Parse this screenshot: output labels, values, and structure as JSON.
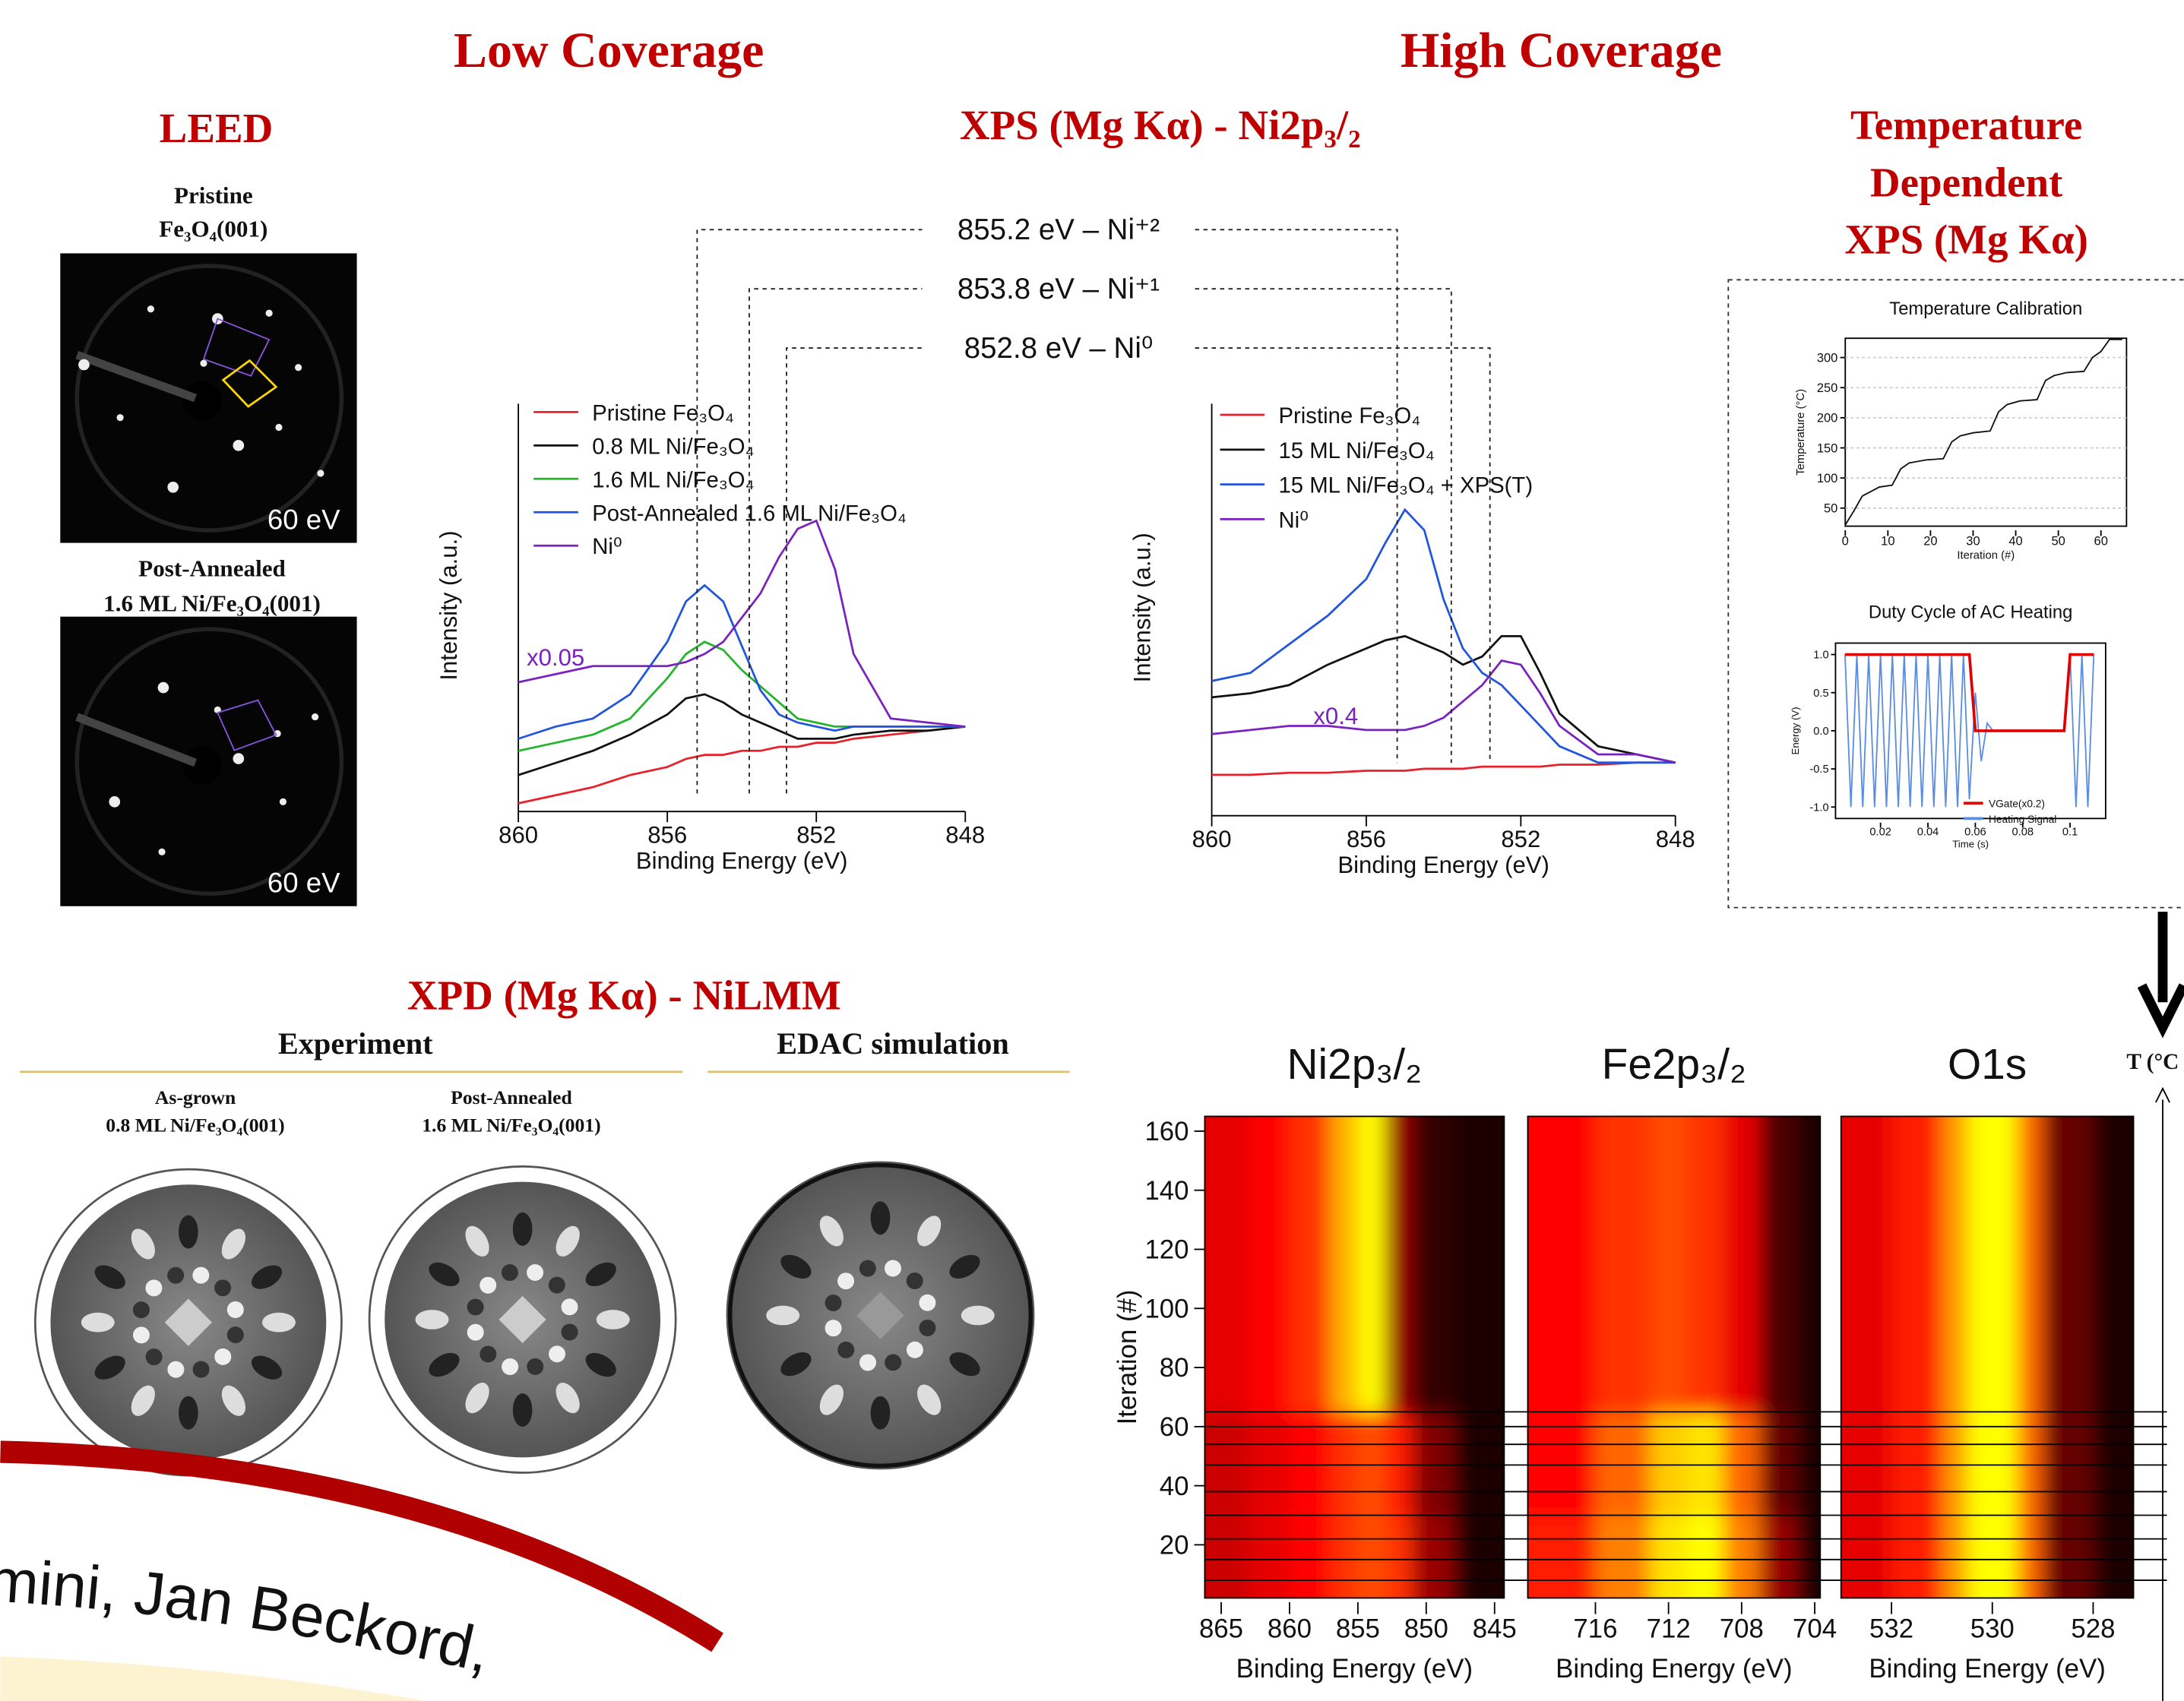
{
  "header": {
    "left": "Low Coverage",
    "right": "High Coverage"
  },
  "leed": {
    "title": "LEED",
    "panels": [
      {
        "label": [
          "Pristine",
          "Fe₃O₄(001)"
        ],
        "energy": "60 eV"
      },
      {
        "label": [
          "Post-Annealed",
          "1.6 ML Ni/Fe₃O₄(001)"
        ],
        "energy": "60 eV"
      }
    ]
  },
  "xps_title": "XPS (Mg Kα) - Ni2p₃/₂",
  "xps_references": [
    {
      "value": 855.2,
      "label": "855.2 eV – Ni⁺²"
    },
    {
      "value": 853.8,
      "label": "853.8 eV – Ni⁺¹"
    },
    {
      "value": 852.8,
      "label": "852.8 eV – Ni⁰"
    }
  ],
  "temperature_title": [
    "Temperature",
    "Dependent",
    "XPS (Mg Kα)"
  ],
  "xpd": {
    "title": "XPD (Mg Kα) - NiLMM",
    "experiment": "Experiment",
    "simulation": "EDAC simulation",
    "panels": [
      [
        "As-grown",
        "0.8 ML Ni/Fe₃O₄(001)"
      ],
      [
        "Post-Annealed",
        "1.6 ML Ni/Fe₃O₄(001)"
      ]
    ]
  },
  "iteration_steps": [
    8,
    15,
    22,
    30,
    38,
    47,
    54,
    60,
    65
  ],
  "t_axis_label": "T (°C",
  "authors": "mini, Jan Beckord, ",
  "chart_data": [
    {
      "type": "line",
      "xlabel": "Binding Energy (eV)",
      "ylabel": "Intensity (a.u.)",
      "xlim": [
        860,
        848
      ],
      "xticks": [
        860,
        856,
        852,
        848
      ],
      "ylim": [
        0,
        100
      ],
      "scale_label": "x0.05",
      "x": [
        860,
        859,
        858,
        857,
        856,
        855.5,
        855,
        854.5,
        854,
        853.5,
        853,
        852.5,
        852,
        851.5,
        851,
        850,
        849,
        848
      ],
      "series": [
        {
          "name": "Pristine Fe₃O₄",
          "color": "#e8202a",
          "values": [
            1,
            3,
            5,
            8,
            10,
            12,
            13,
            13,
            14,
            14,
            15,
            15,
            16,
            16,
            17,
            18,
            19,
            20
          ]
        },
        {
          "name": "0.8 ML Ni/Fe₃O₄",
          "color": "#111111",
          "values": [
            8,
            11,
            14,
            18,
            23,
            27,
            28,
            26,
            23,
            21,
            19,
            17,
            17,
            17,
            18,
            19,
            19,
            20
          ]
        },
        {
          "name": "1.6 ML Ni/Fe₃O₄",
          "color": "#22b52a",
          "values": [
            14,
            16,
            18,
            22,
            32,
            38,
            41,
            39,
            34,
            30,
            26,
            22,
            21,
            20,
            20,
            20,
            20,
            20
          ]
        },
        {
          "name": "Post-Annealed 1.6 ML Ni/Fe₃O₄",
          "color": "#2255dd",
          "values": [
            17,
            20,
            22,
            28,
            41,
            51,
            55,
            51,
            40,
            29,
            23,
            21,
            20,
            19,
            20,
            20,
            20,
            20
          ]
        },
        {
          "name": "Ni⁰",
          "color": "#7a22c0",
          "values": [
            31,
            33,
            35,
            35,
            35,
            36,
            38,
            41,
            47,
            53,
            62,
            69,
            71,
            59,
            38,
            22,
            21,
            20
          ]
        }
      ]
    },
    {
      "type": "line",
      "xlabel": "Binding Energy (eV)",
      "ylabel": "Intensity (a.u.)",
      "xlim": [
        860,
        848
      ],
      "xticks": [
        860,
        856,
        852,
        848
      ],
      "ylim": [
        0,
        100
      ],
      "scale_label": "x0.4",
      "x": [
        860,
        859,
        858,
        857,
        856,
        855.5,
        855,
        854.5,
        854,
        853.5,
        853,
        852.5,
        852,
        851.5,
        851,
        850,
        849,
        848
      ],
      "series": [
        {
          "name": "Pristine Fe₃O₄",
          "color": "#e8202a",
          "values": [
            9,
            9,
            9.5,
            9.5,
            10,
            10,
            10,
            10.5,
            10.5,
            10.5,
            11,
            11,
            11,
            11,
            11.5,
            11.5,
            12,
            12
          ]
        },
        {
          "name": "15 ML Ni/Fe₃O₄",
          "color": "#111111",
          "values": [
            28,
            29,
            31,
            36,
            40,
            42,
            43,
            41,
            39,
            36,
            38,
            43,
            43,
            34,
            24,
            16,
            14,
            12
          ]
        },
        {
          "name": "15 ML Ni/Fe₃O₄ + XPS(T)",
          "color": "#2255dd",
          "values": [
            32,
            34,
            41,
            48,
            57,
            66,
            74,
            69,
            52,
            40,
            34,
            31,
            26,
            21,
            16,
            12,
            12,
            12
          ]
        },
        {
          "name": "Ni⁰",
          "color": "#7a22c0",
          "values": [
            19,
            20,
            21,
            21,
            20,
            20,
            20,
            21,
            23,
            27,
            31,
            37,
            36,
            29,
            21,
            14,
            14,
            12
          ]
        }
      ]
    },
    {
      "type": "line",
      "title": "Temperature Calibration",
      "xlabel": "Iteration (#)",
      "ylabel": "Temperature (°C)",
      "xlim": [
        0,
        66
      ],
      "xticks": [
        0,
        10,
        20,
        30,
        40,
        50,
        60
      ],
      "ylim": [
        20,
        332
      ],
      "yticks": [
        50,
        100,
        150,
        200,
        250,
        300
      ],
      "grid": true,
      "x": [
        0,
        2,
        4,
        8,
        11,
        13,
        15,
        19,
        23,
        25,
        27,
        30,
        34,
        36,
        38,
        41,
        45,
        47,
        49,
        52,
        56,
        58,
        60,
        62,
        65
      ],
      "series": [
        {
          "name": "Temperature",
          "color": "#111111",
          "values": [
            22,
            45,
            70,
            85,
            88,
            115,
            125,
            130,
            132,
            160,
            170,
            175,
            178,
            210,
            222,
            228,
            230,
            262,
            270,
            275,
            277,
            300,
            310,
            330,
            330
          ]
        }
      ]
    },
    {
      "type": "line",
      "title": "Duty Cycle of AC Heating",
      "xlabel": "Time (s)",
      "ylabel": "Energy (V)",
      "xlim": [
        0.001,
        0.115
      ],
      "xticks": [
        0.02,
        0.04,
        0.06,
        0.08,
        0.1
      ],
      "ylim": [
        -1.15,
        1.15
      ],
      "yticks": [
        {
          "value": 1,
          "label": "1.0"
        },
        0.5,
        {
          "value": 0,
          "label": "0.0"
        },
        -0.5,
        {
          "value": -1,
          "label": "-1.0"
        }
      ],
      "legend": "lower right",
      "x": [
        0.005,
        0.0075,
        0.01,
        0.0125,
        0.015,
        0.0175,
        0.02,
        0.0225,
        0.025,
        0.0275,
        0.03,
        0.0325,
        0.035,
        0.0375,
        0.04,
        0.0425,
        0.045,
        0.0475,
        0.05,
        0.0525,
        0.055,
        0.0575,
        0.06,
        0.0625,
        0.065,
        0.0675,
        0.07,
        0.0725,
        0.075,
        0.0775,
        0.08,
        0.0825,
        0.085,
        0.0875,
        0.09,
        0.0925,
        0.095,
        0.0975,
        0.1,
        0.1025,
        0.105,
        0.1075,
        0.11
      ],
      "series": [
        {
          "name": "Heating Signal",
          "color": "#5b8de0",
          "values": [
            1,
            -1,
            1,
            -1,
            1,
            -1,
            1,
            -1,
            1,
            -1,
            1,
            -1,
            1,
            -1,
            1,
            -1,
            1,
            -1,
            1,
            -1,
            1,
            -0.9,
            0.5,
            -0.4,
            0.1,
            0,
            0,
            0,
            0,
            0,
            0,
            0,
            0,
            0,
            0,
            0,
            0,
            0,
            1,
            -1,
            1,
            -1,
            1
          ]
        },
        {
          "name": "VGate(x0.2)",
          "color": "#e00000",
          "values": [
            1,
            1,
            1,
            1,
            1,
            1,
            1,
            1,
            1,
            1,
            1,
            1,
            1,
            1,
            1,
            1,
            1,
            1,
            1,
            1,
            1,
            1,
            0,
            0,
            0,
            0,
            0,
            0,
            0,
            0,
            0,
            0,
            0,
            0,
            0,
            0,
            0,
            0,
            1,
            1,
            1,
            1,
            1
          ]
        }
      ]
    },
    {
      "type": "heatmap",
      "title": "Ni2p₃/₂",
      "xlabel": "Binding Energy (eV)",
      "ylabel": "Iteration (#)",
      "xlim": [
        866.2,
        844.3
      ],
      "xticks": [
        865,
        860,
        855,
        850,
        845
      ],
      "ylim": [
        2,
        165
      ],
      "yticks": [
        20,
        40,
        60,
        80,
        100,
        120,
        140,
        160
      ],
      "colormap": [
        "#000000",
        "#ff0000",
        "#ffff00"
      ],
      "x_bins": [
        866.2,
        863,
        860,
        857,
        855,
        853,
        851,
        848,
        844.3
      ],
      "y_bins": [
        2,
        30,
        65,
        165
      ],
      "values": [
        [
          0.4,
          0.45,
          0.5,
          0.6,
          0.65,
          0.6,
          0.3,
          0.05
        ],
        [
          0.4,
          0.45,
          0.5,
          0.6,
          0.65,
          0.55,
          0.25,
          0.05
        ],
        [
          0.45,
          0.5,
          0.6,
          0.85,
          1,
          0.3,
          0.1,
          0.05
        ]
      ]
    },
    {
      "type": "heatmap",
      "title": "Fe2p₃/₂",
      "xlabel": "Binding Energy (eV)",
      "xlim": [
        719.7,
        703.7
      ],
      "xticks": [
        716,
        712,
        708,
        704
      ],
      "ylim": [
        2,
        165
      ],
      "colormap": [
        "#000000",
        "#ff0000",
        "#ffff00"
      ],
      "x_bins": [
        719.7,
        716,
        713,
        711,
        709,
        707,
        705,
        703.7
      ],
      "y_bins": [
        2,
        30,
        65,
        165
      ],
      "values": [
        [
          0.55,
          0.75,
          0.95,
          1,
          0.75,
          0.3,
          0.05
        ],
        [
          0.5,
          0.7,
          0.9,
          0.95,
          0.7,
          0.2,
          0.05
        ],
        [
          0.5,
          0.6,
          0.65,
          0.6,
          0.45,
          0.15,
          0.05
        ]
      ]
    },
    {
      "type": "heatmap",
      "title": "O1s",
      "xlabel": "Binding Energy (eV)",
      "xlim": [
        533,
        527.2
      ],
      "xticks": [
        532,
        530,
        528
      ],
      "ylim": [
        2,
        165
      ],
      "colormap": [
        "#000000",
        "#ff0000",
        "#ffff00"
      ],
      "x_bins": [
        533,
        532,
        531,
        530.5,
        529.5,
        529,
        528,
        527.2
      ],
      "y_bins": [
        2,
        30,
        65,
        165
      ],
      "values": [
        [
          0.45,
          0.55,
          0.8,
          1,
          0.7,
          0.2,
          0.05
        ],
        [
          0.45,
          0.55,
          0.8,
          1,
          0.7,
          0.2,
          0.05
        ],
        [
          0.45,
          0.55,
          0.8,
          1,
          0.7,
          0.2,
          0.05
        ]
      ]
    }
  ]
}
